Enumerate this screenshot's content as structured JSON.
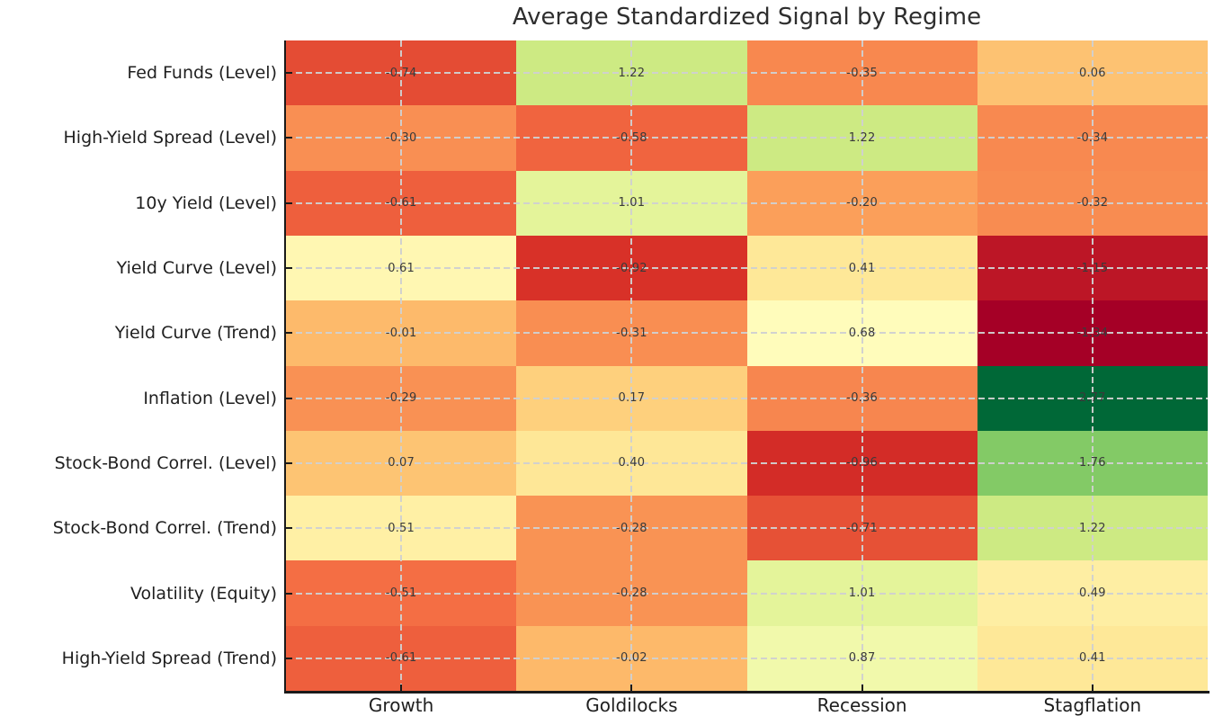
{
  "title": "Average Standardized Signal by Regime",
  "chart_data": {
    "type": "heatmap",
    "title": "Average Standardized Signal by Regime",
    "columns": [
      "Growth",
      "Goldilocks",
      "Recession",
      "Stagflation"
    ],
    "rows": [
      "Fed Funds (Level)",
      "High-Yield Spread (Level)",
      "10y Yield (Level)",
      "Yield Curve (Level)",
      "Yield Curve (Trend)",
      "Inflation (Level)",
      "Stock-Bond Correl. (Level)",
      "Stock-Bond Correl. (Trend)",
      "Volatility (Equity)",
      "High-Yield Spread (Trend)"
    ],
    "values": [
      [
        -0.74,
        1.22,
        -0.35,
        0.06
      ],
      [
        -0.3,
        -0.58,
        1.22,
        -0.34
      ],
      [
        -0.61,
        1.01,
        -0.2,
        -0.32
      ],
      [
        0.61,
        -0.92,
        0.41,
        -1.15
      ],
      [
        -0.01,
        -0.31,
        0.68,
        -1.34
      ],
      [
        -0.29,
        0.17,
        -0.36,
        2.77
      ],
      [
        0.07,
        0.4,
        -0.96,
        1.76
      ],
      [
        0.51,
        -0.28,
        -0.71,
        1.22
      ],
      [
        -0.51,
        -0.28,
        1.01,
        0.49
      ],
      [
        -0.61,
        -0.02,
        0.87,
        0.41
      ]
    ],
    "cell_labels": [
      [
        "-0.74",
        "1.22",
        "-0.35",
        "0.06"
      ],
      [
        "-0.30",
        "-0.58",
        "1.22",
        "-0.34"
      ],
      [
        "-0.61",
        "1.01",
        "-0.20",
        "-0.32"
      ],
      [
        "0.61",
        "-0.92",
        "0.41",
        "-1.15"
      ],
      [
        "-0.01",
        "-0.31",
        "0.68",
        "-1.34"
      ],
      [
        "-0.29",
        "0.17",
        "-0.36",
        "2.77"
      ],
      [
        "0.07",
        "0.40",
        "-0.96",
        "1.76"
      ],
      [
        "0.51",
        "-0.28",
        "-0.71",
        "1.22"
      ],
      [
        "-0.51",
        "-0.28",
        "1.01",
        "0.49"
      ],
      [
        "-0.61",
        "-0.02",
        "0.87",
        "0.41"
      ]
    ],
    "colormap": "RdYlGn",
    "vmin": -1.34,
    "vmax": 2.77,
    "grid": "dashed",
    "legend": "none",
    "annotation_color": "#3a3a3a",
    "spine_color": "#1a1a1a",
    "gridline_color": "#d0d0d0",
    "background_color": "#ffffff"
  }
}
